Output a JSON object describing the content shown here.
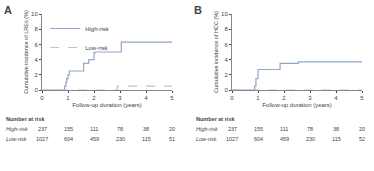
{
  "chart_data": [
    {
      "type": "step",
      "title": "A",
      "x_label": "Follow-up duration (years)",
      "y_label": "Cumulative incidence of LREs (%)",
      "xlim": [
        0,
        5
      ],
      "ylim": [
        0,
        10
      ],
      "xticks": [
        0,
        1,
        2,
        3,
        4,
        5
      ],
      "yticks": [
        0,
        2,
        4,
        6,
        8,
        10
      ],
      "grid": false,
      "legend": "upper left",
      "series": [
        {
          "name": "High-risk",
          "color": "#8fa8c8",
          "line_style": "solid",
          "x": [
            0,
            0.85,
            0.87,
            0.92,
            0.95,
            1.0,
            1.05,
            1.1,
            1.55,
            1.6,
            1.75,
            1.8,
            2.0,
            2.05,
            3.0,
            3.05,
            5.0
          ],
          "values": [
            0,
            0,
            0.5,
            1.0,
            1.5,
            2.0,
            2.5,
            2.5,
            2.5,
            3.5,
            3.5,
            4.0,
            4.9,
            5.0,
            5.0,
            6.3,
            6.3
          ]
        },
        {
          "name": "Low-risk",
          "color": "#b8c4d4",
          "line_style": "dashed",
          "x": [
            0,
            2.85,
            2.9,
            5.0
          ],
          "values": [
            0,
            0,
            0.5,
            0.5
          ]
        }
      ],
      "number_at_risk": {
        "title": "Number at risk",
        "x": [
          0,
          1,
          2,
          3,
          4,
          5
        ],
        "rows": [
          {
            "name": "High-risk",
            "values": [
              237,
              155,
              111,
              78,
              38,
              20
            ]
          },
          {
            "name": "Low-risk",
            "values": [
              1027,
              604,
              459,
              230,
              115,
              51
            ]
          }
        ]
      }
    },
    {
      "type": "step",
      "title": "B",
      "x_label": "Follow-up duration (years)",
      "y_label": "Cumulative incidence of HCC (%)",
      "xlim": [
        0,
        5
      ],
      "ylim": [
        0,
        10
      ],
      "xticks": [
        0,
        1,
        2,
        3,
        4,
        5
      ],
      "yticks": [
        0,
        2,
        4,
        6,
        8,
        10
      ],
      "grid": false,
      "series": [
        {
          "name": "High-risk",
          "color": "#8fa8c8",
          "line_style": "solid",
          "x": [
            0,
            0.85,
            0.87,
            0.92,
            1.0,
            1.8,
            1.85,
            2.5,
            2.55,
            5.0
          ],
          "values": [
            0,
            0,
            0.5,
            1.5,
            2.7,
            2.7,
            3.5,
            3.5,
            3.7,
            3.7
          ]
        },
        {
          "name": "Low-risk",
          "color": "#b8c4d4",
          "line_style": "dashed",
          "x": [
            0,
            5.0
          ],
          "values": [
            0,
            0
          ]
        }
      ],
      "number_at_risk": {
        "title": "Number at risk",
        "x": [
          0,
          1,
          2,
          3,
          4,
          5
        ],
        "rows": [
          {
            "name": "High-risk",
            "values": [
              237,
              155,
              111,
              78,
              38,
              20
            ]
          },
          {
            "name": "Low-risk",
            "values": [
              1027,
              604,
              459,
              230,
              115,
              52
            ]
          }
        ]
      }
    }
  ]
}
